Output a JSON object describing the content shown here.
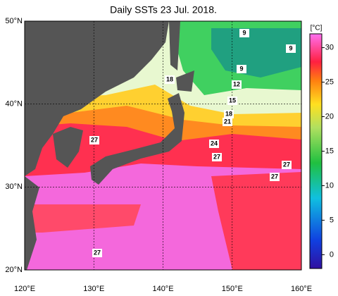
{
  "title": "Daily SSTs 23 Jul. 2018.",
  "map": {
    "lon_range": [
      120,
      160
    ],
    "lat_range": [
      20,
      50
    ],
    "lon_ticks": [
      {
        "value": 120,
        "label": "120°E"
      },
      {
        "value": 130,
        "label": "130°E"
      },
      {
        "value": 140,
        "label": "140°E"
      },
      {
        "value": 150,
        "label": "150°E"
      },
      {
        "value": 160,
        "label": "160°E"
      }
    ],
    "lat_ticks": [
      {
        "value": 20,
        "label": "20°N"
      },
      {
        "value": 30,
        "label": "30°N"
      },
      {
        "value": 40,
        "label": "40°N"
      },
      {
        "value": 50,
        "label": "50°N"
      }
    ],
    "contour_labels": [
      9,
      9,
      9,
      12,
      15,
      18,
      21,
      24,
      27,
      27,
      27,
      18,
      27,
      27
    ]
  },
  "colorbar": {
    "unit": "[°C]",
    "range": [
      -2,
      32
    ],
    "ticks": [
      0,
      5,
      10,
      15,
      20,
      25,
      30
    ]
  }
}
